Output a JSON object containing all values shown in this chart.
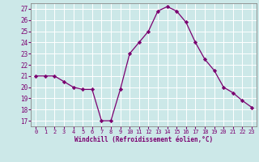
{
  "x": [
    0,
    1,
    2,
    3,
    4,
    5,
    6,
    7,
    8,
    9,
    10,
    11,
    12,
    13,
    14,
    15,
    16,
    17,
    18,
    19,
    20,
    21,
    22,
    23
  ],
  "y": [
    21.0,
    21.0,
    21.0,
    20.5,
    20.0,
    19.8,
    19.8,
    17.0,
    17.0,
    19.8,
    23.0,
    24.0,
    25.0,
    26.8,
    27.2,
    26.8,
    25.8,
    24.0,
    22.5,
    21.5,
    20.0,
    19.5,
    18.8,
    18.2
  ],
  "line_color": "#7B0070",
  "marker": "D",
  "marker_size": 2.2,
  "xlabel": "Windchill (Refroidissement éolien,°C)",
  "ylabel_ticks": [
    17,
    18,
    19,
    20,
    21,
    22,
    23,
    24,
    25,
    26,
    27
  ],
  "xlim": [
    -0.5,
    23.5
  ],
  "ylim": [
    16.5,
    27.5
  ],
  "bg_color": "#cce8e8",
  "grid_color": "#ffffff",
  "tick_label_color": "#7B0070",
  "xlabel_color": "#7B0070",
  "spine_color": "#888888",
  "tick_fontsize": 5.0,
  "xlabel_fontsize": 5.5
}
